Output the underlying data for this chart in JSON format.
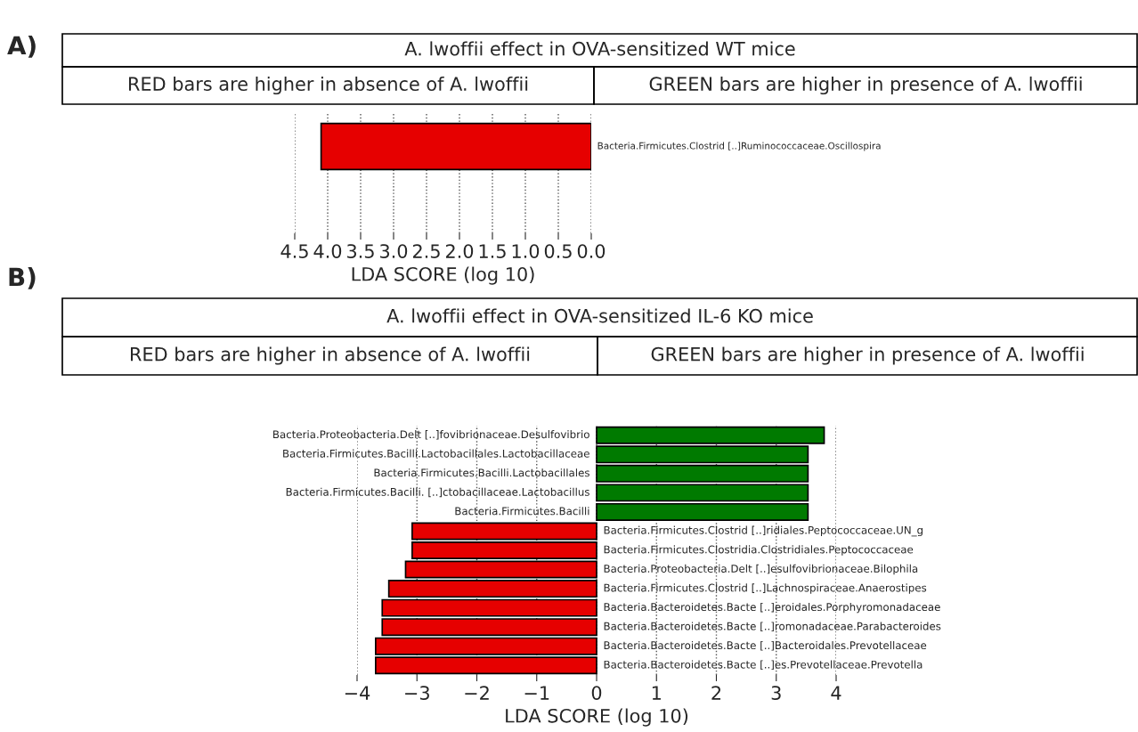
{
  "chart_data": [
    {
      "type": "bar",
      "orientation": "horizontal",
      "title": "A. lwoffii effect in OVA-sensitized WT mice",
      "annotations": [
        "A)",
        "RED bars are higher in absence of A. lwoffii",
        "GREEN bars are higher in presence of A. lwoffii"
      ],
      "categories": [
        "Bacteria.Firmicutes.Clostrid [..]Ruminococcaceae.Oscillospira"
      ],
      "values": [
        4.1
      ],
      "colors": [
        "#e60000"
      ],
      "xlabel": "LDA SCORE (log 10)",
      "xlim": [
        4.5,
        0.0
      ],
      "xticks": [
        {
          "value": 4.5,
          "label": "4.5"
        },
        {
          "value": 4.0,
          "label": "4.0"
        },
        {
          "value": 3.5,
          "label": "3.5"
        },
        {
          "value": 3.0,
          "label": "3.0"
        },
        {
          "value": 2.5,
          "label": "2.5"
        },
        {
          "value": 2.0,
          "label": "2.0"
        },
        {
          "value": 1.5,
          "label": "1.5"
        },
        {
          "value": 1.0,
          "label": "1.0"
        },
        {
          "value": 0.5,
          "label": "0.5"
        },
        {
          "value": 0.0,
          "label": "0.0"
        }
      ],
      "grid": "x"
    },
    {
      "type": "bar",
      "orientation": "horizontal",
      "title": "A. lwoffii effect in OVA-sensitized IL-6 KO mice",
      "annotations": [
        "B)",
        "RED bars are higher in absence of A. lwoffii",
        "GREEN bars are higher in presence of A. lwoffii"
      ],
      "categories": [
        "Bacteria.Proteobacteria.Delt [..]fovibrionaceae.Desulfovibrio",
        "Bacteria.Firmicutes.Bacilli.Lactobacillales.Lactobacillaceae",
        "Bacteria.Firmicutes.Bacilli.Lactobacillales",
        "Bacteria.Firmicutes.Bacilli. [..]ctobacillaceae.Lactobacillus",
        "Bacteria.Firmicutes.Bacilli",
        "Bacteria.Firmicutes.Clostrid [..]ridiales.Peptococcaceae.UN_g",
        "Bacteria.Firmicutes.Clostridia.Clostridiales.Peptococcaceae",
        "Bacteria.Proteobacteria.Delt [..]esulfovibrionaceae.Bilophila",
        "Bacteria.Firmicutes.Clostrid [..]Lachnospiraceae.Anaerostipes",
        "Bacteria.Bacteroidetes.Bacte [..]eroidales.Porphyromonadaceae",
        "Bacteria.Bacteroidetes.Bacte [..]romonadaceae.Parabacteroides",
        "Bacteria.Bacteroidetes.Bacte [..]Bacteroidales.Prevotellaceae",
        "Bacteria.Bacteroidetes.Bacte [..]es.Prevotellaceae.Prevotella"
      ],
      "values": [
        3.8,
        3.53,
        3.53,
        3.53,
        3.53,
        -3.08,
        -3.08,
        -3.19,
        -3.47,
        -3.58,
        -3.58,
        -3.69,
        -3.69
      ],
      "colors": [
        "#007a00",
        "#007a00",
        "#007a00",
        "#007a00",
        "#007a00",
        "#e60000",
        "#e60000",
        "#e60000",
        "#e60000",
        "#e60000",
        "#e60000",
        "#e60000",
        "#e60000"
      ],
      "xlabel": "LDA SCORE (log 10)",
      "xlim": [
        -4,
        4
      ],
      "xticks": [
        {
          "value": -4,
          "label": "−4"
        },
        {
          "value": -3,
          "label": "−3"
        },
        {
          "value": -2,
          "label": "−2"
        },
        {
          "value": -1,
          "label": "−1"
        },
        {
          "value": 0,
          "label": "0"
        },
        {
          "value": 1,
          "label": "1"
        },
        {
          "value": 2,
          "label": "2"
        },
        {
          "value": 3,
          "label": "3"
        },
        {
          "value": 4,
          "label": "4"
        }
      ],
      "grid": "x"
    }
  ]
}
